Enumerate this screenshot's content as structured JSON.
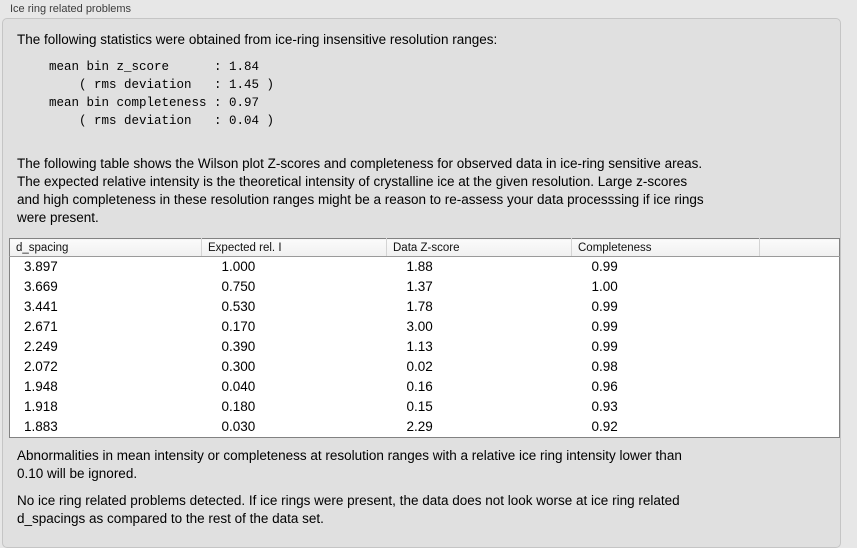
{
  "panel": {
    "title": "Ice ring related problems"
  },
  "intro": "The following statistics were obtained from ice-ring insensitive resolution ranges:",
  "stats": {
    "block_text": "mean bin z_score      : 1.84\n    ( rms deviation   : 1.45 )\nmean bin completeness : 0.97\n    ( rms deviation   : 0.04 )",
    "mean_bin_z_score": "1.84",
    "z_score_rms_deviation": "1.45",
    "mean_bin_completeness": "0.97",
    "completeness_rms_deviation": "0.04"
  },
  "table_description": "The following table shows the Wilson plot Z-scores and completeness for observed data in ice-ring sensitive areas.\nThe expected relative intensity is the theoretical intensity of crystalline ice at the given resolution. Large z-scores\nand high completeness in these resolution ranges might be a reason to re-assess your data processsing if ice rings\nwere present.",
  "table": {
    "columns": [
      "d_spacing",
      "Expected rel. I",
      "Data Z-score",
      "Completeness",
      ""
    ],
    "rows": [
      [
        "3.897",
        "1.000",
        "1.88",
        "0.99"
      ],
      [
        "3.669",
        "0.750",
        "1.37",
        "1.00"
      ],
      [
        "3.441",
        "0.530",
        "1.78",
        "0.99"
      ],
      [
        "2.671",
        "0.170",
        "3.00",
        "0.99"
      ],
      [
        "2.249",
        "0.390",
        "1.13",
        "0.99"
      ],
      [
        "2.072",
        "0.300",
        "0.02",
        "0.98"
      ],
      [
        "1.948",
        "0.040",
        "0.16",
        "0.96"
      ],
      [
        "1.918",
        "0.180",
        "0.15",
        "0.93"
      ],
      [
        "1.883",
        "0.030",
        "2.29",
        "0.92"
      ]
    ]
  },
  "note_ignore": "Abnormalities in mean intensity or completeness at resolution ranges with a relative ice ring intensity lower than\n0.10 will be ignored.",
  "conclusion": "No ice ring related problems detected. If ice rings were present, the data does not look worse at ice ring related\nd_spacings as compared to the rest of the data set.",
  "colors": {
    "page_background": "#e7e7e7",
    "group_box_background": "#e0e0e0",
    "group_box_border": "#c5c5c5",
    "table_background": "#ffffff",
    "table_border": "#828282",
    "table_header_background": "#f5f5f5",
    "text": "#000000"
  }
}
